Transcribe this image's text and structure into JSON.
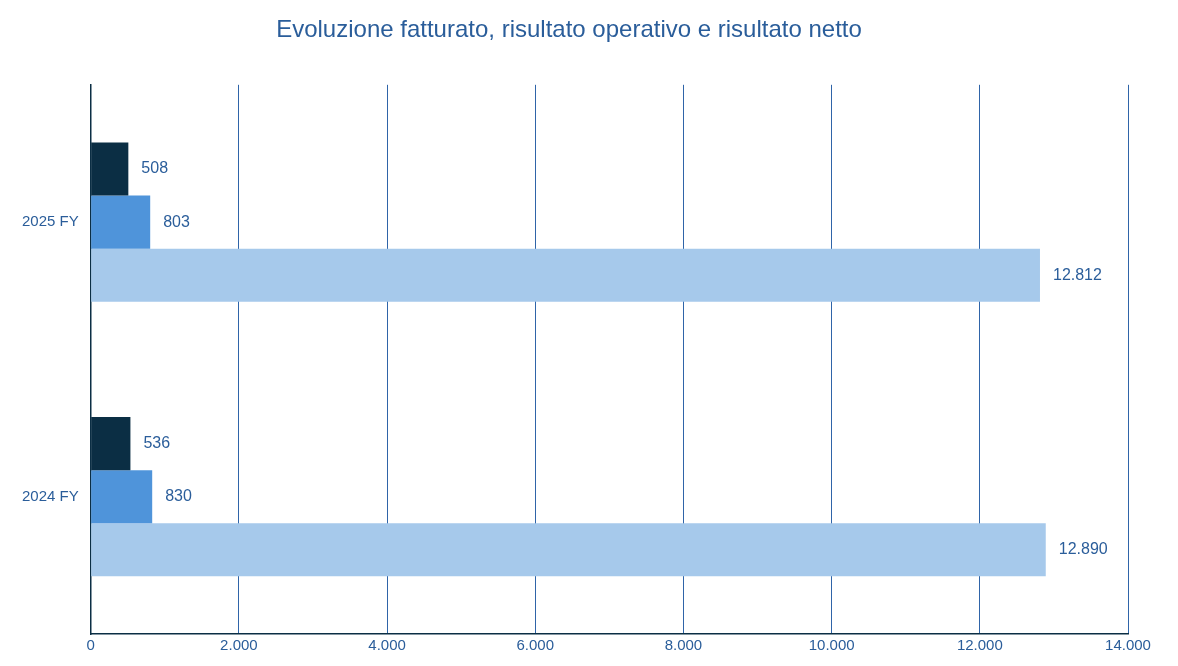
{
  "chart_data": {
    "type": "bar",
    "orientation": "horizontal",
    "title": "Evoluzione fatturato, risultato operativo e risultato netto",
    "categories": [
      "2025 FY",
      "2024 FY"
    ],
    "series": [
      {
        "color": "#0b2e44",
        "values": [
          508,
          536
        ],
        "value_labels": [
          "508",
          "536"
        ]
      },
      {
        "color": "#4f94da",
        "values": [
          803,
          830
        ],
        "value_labels": [
          "803",
          "830"
        ]
      },
      {
        "color": "#a6c9eb",
        "values": [
          12812,
          12890
        ],
        "value_labels": [
          "12.812",
          "12.890"
        ]
      }
    ],
    "xlim": [
      0,
      14000
    ],
    "xticks": [
      0,
      {
        "value": 2000,
        "label": "2.000"
      },
      {
        "value": 4000,
        "label": "4.000"
      },
      {
        "value": 6000,
        "label": "6.000"
      },
      {
        "value": 8000,
        "label": "8.000"
      },
      {
        "value": 10000,
        "label": "10.000"
      },
      {
        "value": 12000,
        "label": "12.000"
      },
      {
        "value": 14000,
        "label": "14.000"
      }
    ],
    "grid": "x",
    "legend": false
  }
}
